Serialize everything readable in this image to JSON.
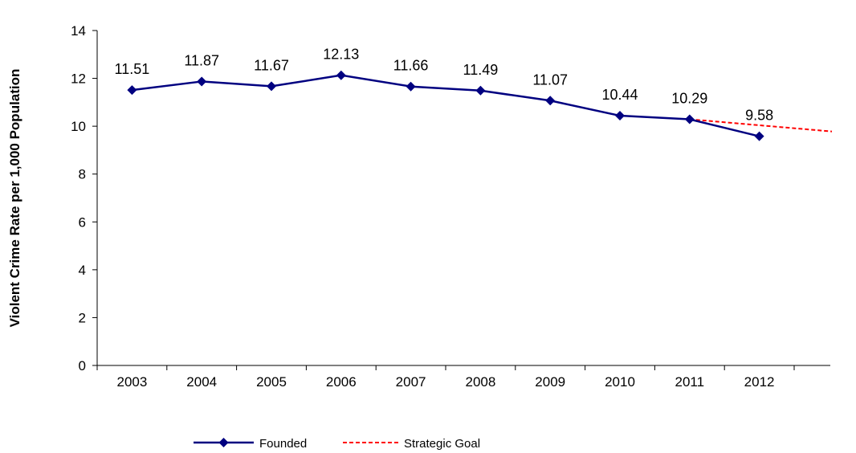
{
  "chart_data": {
    "type": "line",
    "title": "",
    "xlabel": "",
    "ylabel": "Violent Crime Rate per 1,000 Population",
    "categories": [
      "2003",
      "2004",
      "2005",
      "2006",
      "2007",
      "2008",
      "2009",
      "2010",
      "2011",
      "2012"
    ],
    "ylim": [
      0,
      14
    ],
    "yticks": [
      0,
      2,
      4,
      6,
      8,
      10,
      12,
      14
    ],
    "grid": false,
    "legend_position": "bottom",
    "series": [
      {
        "name": "Founded",
        "style": "solid line with diamond markers",
        "color": "#000080",
        "values": [
          11.51,
          11.87,
          11.67,
          12.13,
          11.66,
          11.49,
          11.07,
          10.44,
          10.29,
          9.58
        ],
        "labels": [
          "11.51",
          "11.87",
          "11.67",
          "12.13",
          "11.66",
          "11.49",
          "11.07",
          "10.44",
          "10.29",
          "9.58"
        ]
      },
      {
        "name": "Strategic Goal",
        "style": "dashed line",
        "color": "#ff0000",
        "x": [
          "2011",
          "2013"
        ],
        "values": [
          10.29,
          9.78
        ]
      }
    ]
  }
}
